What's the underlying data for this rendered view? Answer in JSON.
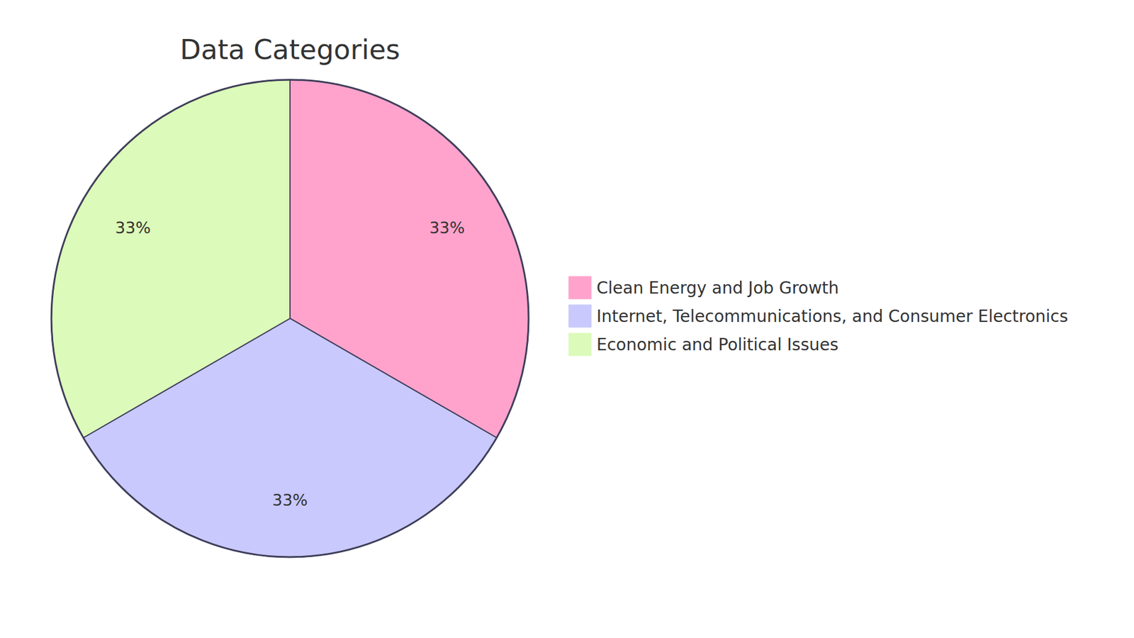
{
  "chart_data": {
    "type": "pie",
    "title": "Data Categories",
    "categories": [
      "Clean Energy and Job Growth",
      "Internet, Telecommunications, and Consumer Electronics",
      "Economic and Political Issues"
    ],
    "values": [
      33,
      33,
      33
    ],
    "value_labels": [
      "33%",
      "33%",
      "33%"
    ],
    "colors": [
      "#ffa3cd",
      "#c9c9fe",
      "#dcfab9"
    ],
    "data_labels": true,
    "legend": "right"
  }
}
